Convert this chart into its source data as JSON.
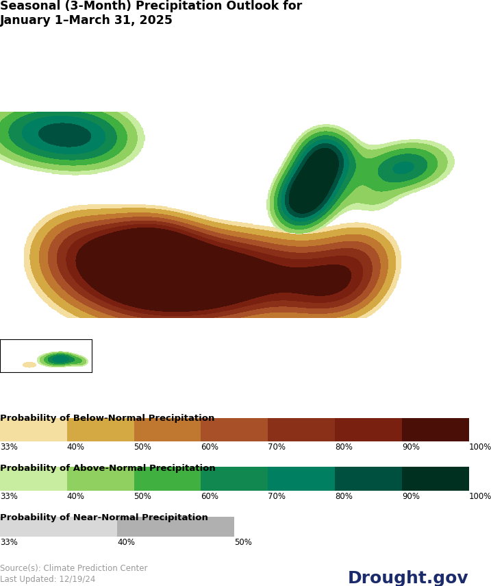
{
  "title_line1": "Seasonal (3-Month) Precipitation Outlook for",
  "title_line2": "January 1–March 31, 2025",
  "source_text": "Source(s): Climate Prediction Center",
  "updated_text": "Last Updated: 12/19/24",
  "drought_gov": "Drought.gov",
  "legend_below_title": "Probability of Below-Normal Precipitation",
  "legend_above_title": "Probability of Above-Normal Precipitation",
  "legend_near_title": "Probability of Near-Normal Precipitation",
  "below_colors": [
    "#F5DFA0",
    "#D4A843",
    "#C07830",
    "#A85028",
    "#8B3018",
    "#7A2010",
    "#4A1008"
  ],
  "above_colors": [
    "#C8ECA0",
    "#90D060",
    "#40B040",
    "#108850",
    "#008060",
    "#005040",
    "#003020"
  ],
  "near_colors": [
    "#D8D8D8",
    "#B0B0B0"
  ],
  "below_labels": [
    "33%",
    "40%",
    "50%",
    "60%",
    "70%",
    "80%",
    "90%",
    "100%"
  ],
  "above_labels": [
    "33%",
    "40%",
    "50%",
    "60%",
    "70%",
    "80%",
    "90%",
    "100%"
  ],
  "near_labels": [
    "33%",
    "40%",
    "50%"
  ],
  "background_color": "#FFFFFF",
  "state_border_color": "#909090",
  "country_border_color": "#505050",
  "map_xlim": [
    -125,
    -66
  ],
  "map_ylim": [
    24.0,
    50.0
  ],
  "alaska_xlim": [
    -180,
    -130
  ],
  "alaska_ylim": [
    54,
    72
  ],
  "drought_color": "#1B2A6B"
}
